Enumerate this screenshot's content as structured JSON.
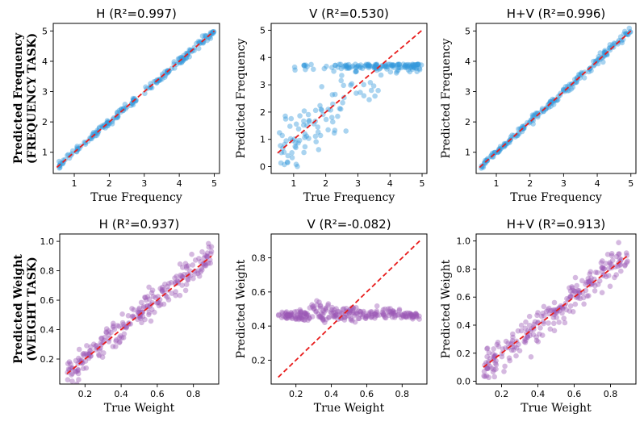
{
  "chart_data": [
    {
      "type": "scatter",
      "title": "H (R²=0.997)",
      "xlabel": "True Frequency",
      "ylabel": "Predicted Frequency",
      "ylabel_bold": true,
      "ylabel_line2": "(FREQUENCY TASK)",
      "xlim": [
        0.4,
        5.15
      ],
      "ylim": [
        0.3,
        5.25
      ],
      "xticks": [
        "1",
        "2",
        "3",
        "4",
        "5"
      ],
      "xtick_values": [
        1,
        2,
        3,
        4,
        5
      ],
      "yticks": [
        "1",
        "2",
        "3",
        "4",
        "5"
      ],
      "ytick_values": [
        1,
        2,
        3,
        4,
        5
      ],
      "color": "#3498db",
      "diagonal": [
        0.5,
        5.0
      ],
      "series": [
        {
          "name": "points",
          "pattern": "tight",
          "range": [
            0.55,
            5.0
          ],
          "noise": 0.06,
          "count": 200
        }
      ]
    },
    {
      "type": "scatter",
      "title": "V (R²=0.530)",
      "xlabel": "True Frequency",
      "ylabel": "Predicted Frequency",
      "ylabel_bold": false,
      "xlim": [
        0.3,
        5.15
      ],
      "ylim": [
        -0.25,
        5.25
      ],
      "xticks": [
        "1",
        "2",
        "3",
        "4",
        "5"
      ],
      "xtick_values": [
        1,
        2,
        3,
        4,
        5
      ],
      "yticks": [
        "0",
        "1",
        "2",
        "3",
        "4",
        "5"
      ],
      "ytick_values": [
        0,
        1,
        2,
        3,
        4,
        5
      ],
      "color": "#3498db",
      "diagonal": [
        0.5,
        5.0
      ],
      "series": [
        {
          "name": "points",
          "pattern": "saturate",
          "range": [
            0.55,
            5.0
          ],
          "cap": 3.75,
          "count": 230
        }
      ]
    },
    {
      "type": "scatter",
      "title": "H+V (R²=0.996)",
      "xlabel": "True Frequency",
      "ylabel": "Predicted Frequency",
      "ylabel_bold": false,
      "xlim": [
        0.4,
        5.15
      ],
      "ylim": [
        0.3,
        5.25
      ],
      "xticks": [
        "1",
        "2",
        "3",
        "4",
        "5"
      ],
      "xtick_values": [
        1,
        2,
        3,
        4,
        5
      ],
      "yticks": [
        "1",
        "2",
        "3",
        "4",
        "5"
      ],
      "ytick_values": [
        1,
        2,
        3,
        4,
        5
      ],
      "color": "#3498db",
      "diagonal": [
        0.5,
        5.0
      ],
      "series": [
        {
          "name": "points",
          "pattern": "tight",
          "range": [
            0.55,
            5.0
          ],
          "noise": 0.07,
          "count": 200
        }
      ]
    },
    {
      "type": "scatter",
      "title": "H (R²=0.937)",
      "xlabel": "True Weight",
      "ylabel": "Predicted Weight",
      "ylabel_bold": true,
      "ylabel_line2": "(WEIGHT TASK)",
      "xlim": [
        0.06,
        0.94
      ],
      "ylim": [
        0.03,
        1.05
      ],
      "xticks": [
        "0.2",
        "0.4",
        "0.6",
        "0.8"
      ],
      "xtick_values": [
        0.2,
        0.4,
        0.6,
        0.8
      ],
      "yticks": [
        "0.2",
        "0.4",
        "0.6",
        "0.8",
        "1.0"
      ],
      "ytick_values": [
        0.2,
        0.4,
        0.6,
        0.8,
        1.0
      ],
      "color": "#9b59b6",
      "diagonal": [
        0.1,
        0.9
      ],
      "series": [
        {
          "name": "points",
          "pattern": "noisy",
          "range": [
            0.1,
            0.9
          ],
          "noise": 0.05,
          "count": 240
        }
      ]
    },
    {
      "type": "scatter",
      "title": "V (R²=-0.082)",
      "xlabel": "True Weight",
      "ylabel": "Predicted Weight",
      "ylabel_bold": false,
      "xlim": [
        0.06,
        0.94
      ],
      "ylim": [
        0.06,
        0.94
      ],
      "xticks": [
        "0.2",
        "0.4",
        "0.6",
        "0.8"
      ],
      "xtick_values": [
        0.2,
        0.4,
        0.6,
        0.8
      ],
      "yticks": [
        "0.2",
        "0.4",
        "0.6",
        "0.8"
      ],
      "ytick_values": [
        0.2,
        0.4,
        0.6,
        0.8
      ],
      "color": "#9b59b6",
      "diagonal": [
        0.1,
        0.9
      ],
      "series": [
        {
          "name": "points",
          "pattern": "flat",
          "range": [
            0.1,
            0.9
          ],
          "level": 0.46,
          "count": 260
        }
      ]
    },
    {
      "type": "scatter",
      "title": "H+V (R²=0.913)",
      "xlabel": "True Weight",
      "ylabel": "Predicted Weight",
      "ylabel_bold": false,
      "xlim": [
        0.06,
        0.94
      ],
      "ylim": [
        -0.02,
        1.05
      ],
      "xticks": [
        "0.2",
        "0.4",
        "0.6",
        "0.8"
      ],
      "xtick_values": [
        0.2,
        0.4,
        0.6,
        0.8
      ],
      "yticks": [
        "0.0",
        "0.2",
        "0.4",
        "0.6",
        "0.8",
        "1.0"
      ],
      "ytick_values": [
        0.0,
        0.2,
        0.4,
        0.6,
        0.8,
        1.0
      ],
      "color": "#9b59b6",
      "diagonal": [
        0.1,
        0.9
      ],
      "series": [
        {
          "name": "points",
          "pattern": "noisy",
          "range": [
            0.1,
            0.9
          ],
          "noise": 0.06,
          "count": 240
        }
      ]
    }
  ]
}
